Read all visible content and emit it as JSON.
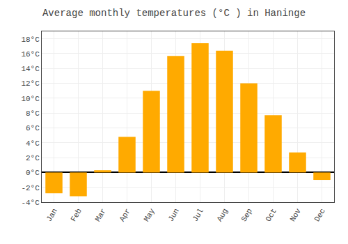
{
  "chart_data": {
    "type": "bar",
    "title": "Average monthly temperatures (°C ) in Haninge",
    "categories": [
      "Jan",
      "Feb",
      "Mar",
      "Apr",
      "May",
      "Jun",
      "Jul",
      "Aug",
      "Sep",
      "Oct",
      "Nov",
      "Dec"
    ],
    "values": [
      -2.8,
      -3.2,
      0.3,
      4.8,
      11.0,
      15.7,
      17.4,
      16.4,
      12.0,
      7.7,
      2.7,
      -1.0
    ],
    "color": "#FFAA00",
    "ylim": [
      -4,
      19
    ],
    "yticks": [
      {
        "value": -4,
        "label": "-4°C"
      },
      {
        "value": -2,
        "label": "-2°C"
      },
      {
        "value": 0,
        "label": "0°C"
      },
      {
        "value": 2,
        "label": "2°C"
      },
      {
        "value": 4,
        "label": "4°C"
      },
      {
        "value": 6,
        "label": "6°C"
      },
      {
        "value": 8,
        "label": "8°C"
      },
      {
        "value": 10,
        "label": "10°C"
      },
      {
        "value": 12,
        "label": "12°C"
      },
      {
        "value": 14,
        "label": "14°C"
      },
      {
        "value": 16,
        "label": "16°C"
      },
      {
        "value": 18,
        "label": "18°C"
      }
    ],
    "grid": true
  }
}
